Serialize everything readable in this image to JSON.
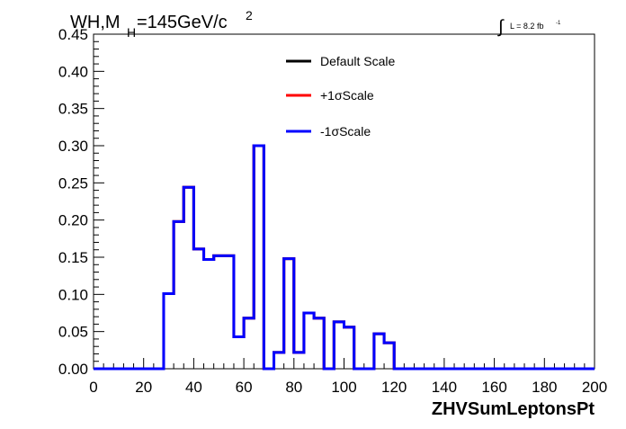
{
  "chart_data": {
    "type": "line",
    "title": "WH,M",
    "title_sub": "H",
    "title_rest": "=145GeV/c",
    "title_sup": "2",
    "lumi_label": "L = 8.2 fb",
    "lumi_sup": "-1",
    "xlabel": "ZHVSumLeptonsPt",
    "ylabel": "",
    "xlim": [
      0,
      200
    ],
    "ylim": [
      0,
      0.45
    ],
    "x_ticks": [
      "0",
      "20",
      "40",
      "60",
      "80",
      "100",
      "120",
      "140",
      "160",
      "180",
      "200"
    ],
    "y_ticks": [
      "0.00",
      "0.05",
      "0.10",
      "0.15",
      "0.20",
      "0.25",
      "0.30",
      "0.35",
      "0.40",
      "0.45"
    ],
    "bin_edges": [
      0,
      4,
      8,
      12,
      16,
      20,
      24,
      28,
      32,
      36,
      40,
      44,
      48,
      52,
      56,
      60,
      64,
      68,
      72,
      76,
      80,
      84,
      88,
      92,
      96,
      100,
      104,
      108,
      112,
      116,
      120,
      124,
      128,
      132,
      136,
      140,
      144,
      148,
      152,
      156,
      160,
      164,
      168,
      172,
      176,
      180,
      184,
      188,
      192,
      196,
      200
    ],
    "series": [
      {
        "name": "Default Scale",
        "color": "#000000",
        "values": [
          0,
          0,
          0,
          0,
          0,
          0,
          0,
          0.101,
          0.198,
          0.244,
          0.161,
          0.147,
          0.152,
          0.152,
          0.043,
          0.068,
          0.3,
          0,
          0.022,
          0.148,
          0.022,
          0.075,
          0.068,
          0,
          0.063,
          0.056,
          0,
          0,
          0.047,
          0.035,
          0,
          0,
          0,
          0,
          0,
          0,
          0,
          0,
          0,
          0,
          0,
          0,
          0,
          0,
          0,
          0,
          0,
          0,
          0,
          0
        ]
      },
      {
        "name": "+1σScale",
        "color": "#ff0000",
        "values": [
          0,
          0,
          0,
          0,
          0,
          0,
          0,
          0.101,
          0.198,
          0.244,
          0.161,
          0.147,
          0.152,
          0.152,
          0.043,
          0.068,
          0.3,
          0,
          0.022,
          0.148,
          0.022,
          0.075,
          0.068,
          0,
          0.063,
          0.056,
          0,
          0,
          0.047,
          0.035,
          0,
          0,
          0,
          0,
          0,
          0,
          0,
          0,
          0,
          0,
          0,
          0,
          0,
          0,
          0,
          0,
          0,
          0,
          0,
          0
        ]
      },
      {
        "name": "-1σScale",
        "color": "#0000ff",
        "values": [
          0,
          0,
          0,
          0,
          0,
          0,
          0,
          0.101,
          0.198,
          0.244,
          0.161,
          0.147,
          0.152,
          0.152,
          0.043,
          0.068,
          0.3,
          0,
          0.022,
          0.148,
          0.022,
          0.075,
          0.068,
          0,
          0.063,
          0.056,
          0,
          0,
          0.047,
          0.035,
          0,
          0,
          0,
          0,
          0,
          0,
          0,
          0,
          0,
          0,
          0,
          0,
          0,
          0,
          0,
          0,
          0,
          0,
          0,
          0
        ]
      }
    ],
    "legend_position": "top-center",
    "grid": false
  }
}
